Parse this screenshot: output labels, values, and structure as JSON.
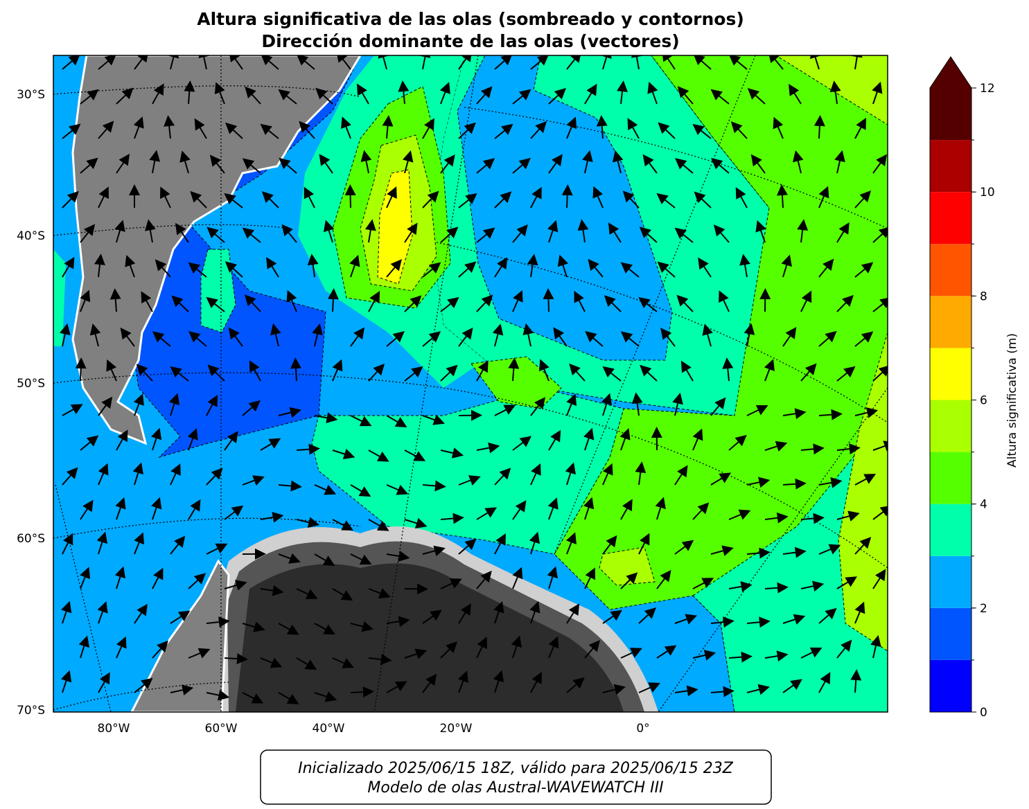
{
  "title": [
    "Altura significativa de las olas (sombreado y contornos)",
    "Dirección dominante de las olas (vectores)"
  ],
  "lat_labels": [
    "30°S",
    "40°S",
    "50°S",
    "60°S",
    "70°S"
  ],
  "lon_labels": [
    "80°W",
    "60°W",
    "40°W",
    "20°W",
    "0°"
  ],
  "colorbar": {
    "label": "Altura significativa (m)",
    "ticks": [
      0,
      2,
      4,
      6,
      8,
      10,
      12
    ],
    "levels": [
      0,
      1,
      2,
      3,
      4,
      5,
      6,
      7,
      8,
      9,
      10,
      11,
      12
    ],
    "colors": [
      "#0000ff",
      "#0055ff",
      "#00aaff",
      "#00ffaa",
      "#55ff00",
      "#aaff00",
      "#ffff00",
      "#ffaa00",
      "#ff5500",
      "#ff0000",
      "#aa0000",
      "#550000"
    ]
  },
  "footer": [
    "Inicializado 2025/06/15 18Z, válido para 2025/06/15 23Z",
    "Modelo de olas Austral-WAVEWATCH III"
  ]
}
